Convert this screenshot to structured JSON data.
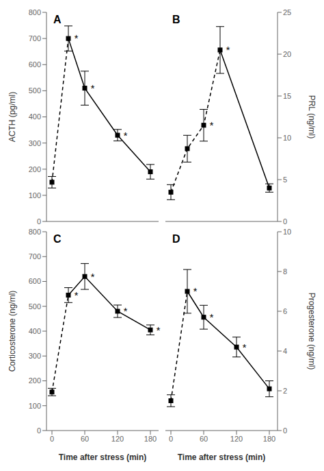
{
  "chart_data": [
    {
      "type": "line",
      "title": "A",
      "ylabel": "ACTH (pg/ml)",
      "tick_labels": "y",
      "x": [
        0,
        30,
        60,
        120,
        180
      ],
      "series": [
        {
          "values": [
            150,
            700,
            null,
            null,
            null
          ],
          "line_style": "dashed",
          "color": "#000000"
        },
        {
          "values": [
            null,
            700,
            510,
            330,
            190
          ],
          "line_style": "solid",
          "color": "#000000"
        },
        {
          "values": [
            150,
            700,
            510,
            330,
            190
          ],
          "yerr": [
            22,
            48,
            65,
            22,
            28
          ],
          "line_style": "none",
          "marker": "square",
          "color": "#000000"
        }
      ],
      "annotations": [
        {
          "x": 30,
          "y": 700,
          "text": "*"
        },
        {
          "x": 60,
          "y": 510,
          "text": "*"
        },
        {
          "x": 120,
          "y": 330,
          "text": "*"
        }
      ],
      "xlim": [
        -10,
        195
      ],
      "xticks": [
        0,
        60,
        120,
        180
      ],
      "ylim": [
        0,
        800
      ],
      "yticks": [
        0,
        100,
        200,
        300,
        400,
        500,
        600,
        700,
        800
      ]
    },
    {
      "type": "line",
      "title": "B",
      "ylabel": "PRL (ng/ml)",
      "tick_labels": "y",
      "x": [
        0,
        30,
        60,
        90,
        180
      ],
      "series": [
        {
          "values": [
            3.5,
            8.7,
            11.5,
            20.5,
            null
          ],
          "line_style": "dashed",
          "color": "#000000"
        },
        {
          "values": [
            null,
            null,
            null,
            20.5,
            4.0
          ],
          "line_style": "solid",
          "color": "#000000"
        },
        {
          "values": [
            3.5,
            8.7,
            11.5,
            20.5,
            4.0
          ],
          "yerr": [
            0.9,
            1.6,
            1.9,
            2.8,
            0.5
          ],
          "line_style": "none",
          "marker": "square",
          "color": "#000000"
        }
      ],
      "annotations": [
        {
          "x": 60,
          "y": 11.5,
          "text": "*"
        },
        {
          "x": 90,
          "y": 20.5,
          "text": "*"
        }
      ],
      "xlim": [
        -10,
        195
      ],
      "xticks": [
        0,
        60,
        120,
        180
      ],
      "ylim": [
        0,
        25
      ],
      "yticks": [
        0,
        5,
        10,
        15,
        20,
        25
      ]
    },
    {
      "type": "line",
      "title": "C",
      "ylabel": "Corticosterone (ng/ml)",
      "xlabel": "Time after stress (min)",
      "x": [
        0,
        30,
        60,
        120,
        180
      ],
      "series": [
        {
          "values": [
            155,
            545,
            null,
            null,
            null
          ],
          "line_style": "dashed",
          "color": "#000000"
        },
        {
          "values": [
            null,
            545,
            620,
            480,
            405
          ],
          "line_style": "solid",
          "color": "#000000"
        },
        {
          "values": [
            155,
            545,
            620,
            480,
            405
          ],
          "yerr": [
            15,
            30,
            52,
            25,
            20
          ],
          "line_style": "none",
          "marker": "square",
          "color": "#000000"
        }
      ],
      "annotations": [
        {
          "x": 30,
          "y": 545,
          "text": "*"
        },
        {
          "x": 60,
          "y": 620,
          "text": "*"
        },
        {
          "x": 120,
          "y": 480,
          "text": "*"
        },
        {
          "x": 180,
          "y": 405,
          "text": "*"
        }
      ],
      "xlim": [
        -10,
        195
      ],
      "xticks": [
        0,
        60,
        120,
        180
      ],
      "ylim": [
        0,
        800
      ],
      "yticks": [
        0,
        100,
        200,
        300,
        400,
        500,
        600,
        700,
        800
      ]
    },
    {
      "type": "line",
      "title": "D",
      "ylabel": "Progesterone (ng/ml)",
      "xlabel": "Time after stress (min)",
      "x": [
        0,
        30,
        60,
        120,
        180
      ],
      "series": [
        {
          "values": [
            1.5,
            7.0,
            null,
            null,
            null
          ],
          "line_style": "dashed",
          "color": "#000000"
        },
        {
          "values": [
            null,
            7.0,
            5.7,
            4.2,
            2.1
          ],
          "line_style": "solid",
          "color": "#000000"
        },
        {
          "values": [
            1.5,
            7.0,
            5.7,
            4.2,
            2.1
          ],
          "yerr": [
            0.3,
            1.1,
            0.6,
            0.5,
            0.4
          ],
          "line_style": "none",
          "marker": "square",
          "color": "#000000"
        }
      ],
      "annotations": [
        {
          "x": 30,
          "y": 7.0,
          "text": "*"
        },
        {
          "x": 60,
          "y": 5.7,
          "text": "*"
        },
        {
          "x": 120,
          "y": 4.2,
          "text": "*"
        }
      ],
      "xlim": [
        -10,
        195
      ],
      "xticks": [
        0,
        60,
        120,
        180
      ],
      "ylim": [
        0,
        10
      ],
      "yticks": [
        0,
        2,
        4,
        6,
        8,
        10
      ]
    }
  ]
}
